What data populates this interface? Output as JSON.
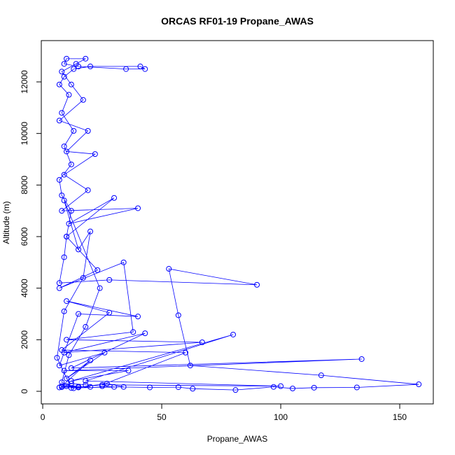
{
  "chart_data": {
    "type": "line",
    "title": "ORCAS RF01-19 Propane_AWAS",
    "xlabel": "Propane_AWAS",
    "ylabel": "Altitude (m)",
    "color": "#0000ff",
    "xlim": [
      -0.6,
      164.1
    ],
    "ylim": [
      -489,
      13602
    ],
    "xticks": [
      0,
      50,
      100,
      150
    ],
    "yticks": [
      0,
      2000,
      4000,
      6000,
      8000,
      10000,
      12000
    ],
    "x": [
      7,
      10,
      15,
      20,
      8,
      12,
      18,
      25,
      30,
      45,
      57,
      63,
      81,
      97,
      105,
      114,
      132,
      158,
      117,
      62,
      57,
      53,
      90,
      28,
      7,
      9,
      10,
      12,
      8,
      7,
      12,
      9,
      13,
      8,
      11,
      7,
      9,
      13,
      20,
      41,
      43,
      35,
      15,
      9,
      10,
      18,
      14,
      8,
      12,
      17,
      7,
      19,
      10,
      22,
      9,
      19,
      8,
      40,
      11,
      30,
      10,
      23,
      7,
      34,
      38,
      10,
      67,
      9,
      43,
      12,
      134,
      9,
      36,
      12,
      80,
      18,
      100,
      25,
      60,
      8,
      28,
      10,
      40,
      15,
      7,
      26,
      10,
      20,
      8,
      15,
      27,
      34,
      12,
      6,
      9,
      17,
      20,
      15,
      9,
      24,
      18,
      11,
      8,
      13
    ],
    "values": [
      150,
      200,
      180,
      170,
      160,
      300,
      250,
      200,
      170,
      150,
      160,
      100,
      50,
      170,
      110,
      140,
      150,
      270,
      620,
      1000,
      2950,
      4750,
      4130,
      4320,
      4200,
      5200,
      6000,
      7000,
      7600,
      8200,
      8800,
      9500,
      10100,
      10800,
      11500,
      11900,
      12200,
      12500,
      12600,
      12600,
      12500,
      12500,
      12600,
      12700,
      12900,
      12900,
      12700,
      12400,
      11900,
      11300,
      10500,
      10100,
      9300,
      9200,
      8400,
      7800,
      7000,
      7100,
      6500,
      7500,
      6000,
      4700,
      4000,
      5000,
      2300,
      2000,
      1900,
      1500,
      2250,
      900,
      1250,
      800,
      800,
      400,
      2200,
      400,
      200,
      250,
      1500,
      1600,
      3050,
      3500,
      2900,
      3000,
      1000,
      1500,
      500,
      1200,
      200,
      150,
      300,
      170,
      130,
      1300,
      3100,
      4400,
      6200,
      5500,
      7400,
      4000,
      2500,
      1400,
      350,
      120
    ]
  }
}
